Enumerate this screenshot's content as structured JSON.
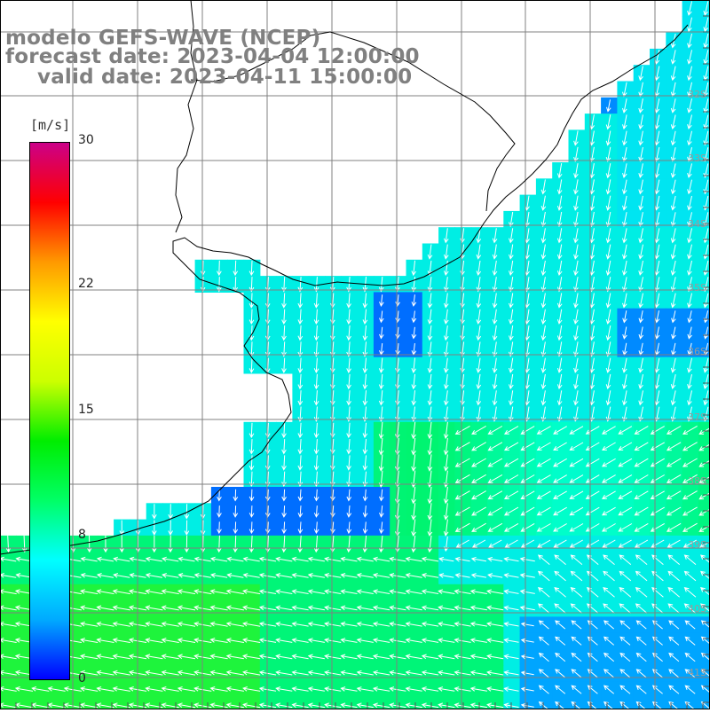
{
  "titles": {
    "line1": "modelo GEFS-WAVE (NCEP)",
    "line2": "forecast date: 2023-04-04 12:00:00",
    "line3": "valid date: 2023-04-11 15:00:00"
  },
  "legend": {
    "unit": "[m/s]",
    "ticks": [
      {
        "label": "30",
        "value": 30
      },
      {
        "label": "22",
        "value": 22
      },
      {
        "label": "15",
        "value": 15
      },
      {
        "label": "8",
        "value": 8
      },
      {
        "label": "0",
        "value": 0
      }
    ],
    "min": 0,
    "max": 30,
    "colors": [
      "#0000ff",
      "#00aaff",
      "#00ffff",
      "#00ff66",
      "#00ee00",
      "#ccff00",
      "#ffff00",
      "#ff9900",
      "#ff0000",
      "#cc0088"
    ]
  },
  "lat_labels": [
    "32S",
    "33S",
    "34S",
    "35S",
    "36S",
    "37S",
    "38S",
    "39S",
    "40S",
    "41S"
  ],
  "colors": {
    "grid": "#808080",
    "coast": "#000000",
    "arrow": "#ffffff",
    "land": "#ffffff"
  }
}
